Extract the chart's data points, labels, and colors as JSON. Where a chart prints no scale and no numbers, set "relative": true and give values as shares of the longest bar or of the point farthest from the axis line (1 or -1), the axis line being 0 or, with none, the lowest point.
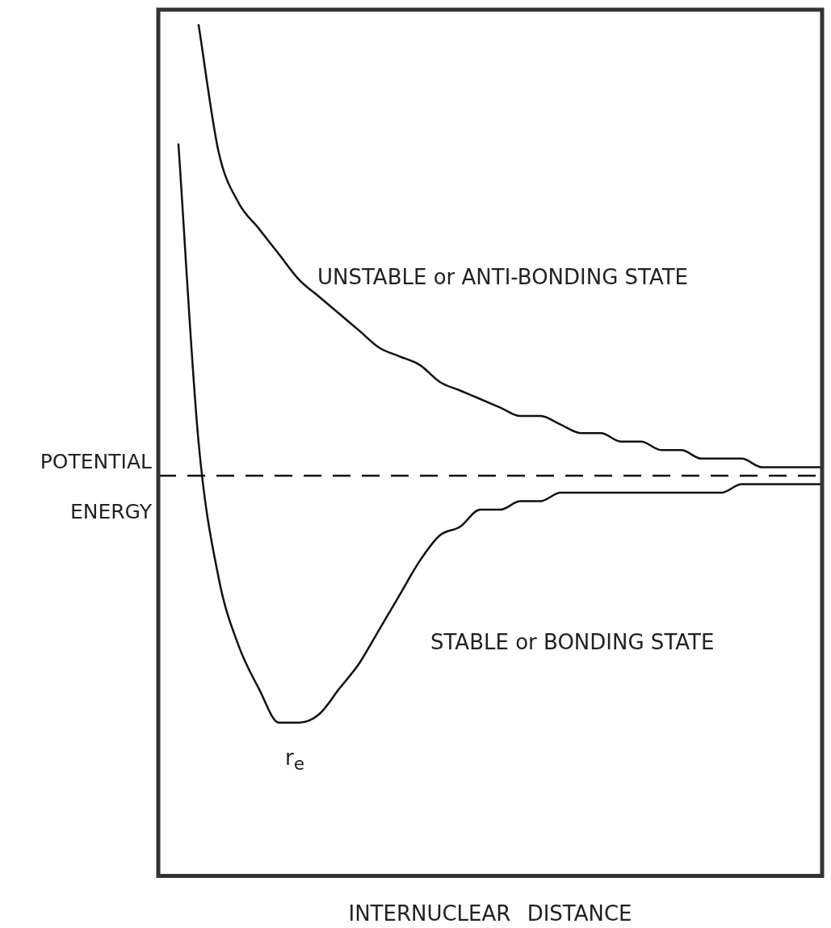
{
  "chart_data": {
    "type": "line",
    "relative": true,
    "xlabel": "INTERNUCLEAR DISTANCE",
    "ylabel": "POTENTIAL ENERGY",
    "legend": false,
    "grid": false,
    "marker": "none",
    "line_style": "solid",
    "categories": [
      null,
      null,
      null,
      null,
      null,
      null,
      null,
      null,
      null,
      null,
      null,
      null,
      null,
      null,
      null,
      null,
      null,
      null,
      null,
      null,
      null,
      null,
      null,
      null,
      null,
      null,
      null,
      null,
      null,
      null,
      null,
      null,
      null,
      null
    ],
    "series": [
      {
        "color": "#111111",
        "values": [
          null,
          null,
          1.0,
          0.85,
          0.79,
          0.76,
          0.73,
          0.7,
          0.68,
          0.66,
          0.64,
          0.62,
          0.61,
          0.6,
          0.58,
          0.57,
          0.56,
          0.55,
          0.54,
          0.54,
          0.53,
          0.52,
          0.52,
          0.51,
          0.51,
          0.5,
          0.5,
          0.49,
          0.49,
          0.49,
          0.48,
          0.48,
          0.48,
          0.48
        ]
      },
      {
        "color": "#111111",
        "values": [
          null,
          0.86,
          0.51,
          0.35,
          0.27,
          0.22,
          0.18,
          0.18,
          0.19,
          0.22,
          0.25,
          0.29,
          0.33,
          0.37,
          0.4,
          0.41,
          0.43,
          0.43,
          0.44,
          0.44,
          0.45,
          0.45,
          0.45,
          0.45,
          0.45,
          0.45,
          0.45,
          0.45,
          0.45,
          0.46,
          0.46,
          0.46,
          0.46,
          0.46
        ]
      }
    ],
    "ref_lines": [
      {
        "axis": "y",
        "value": 0.47,
        "color": "#111111",
        "line_style": "dashed"
      }
    ],
    "annotations": [
      "UNSTABLE or ANTI-BONDING STATE",
      "STABLE or BONDING STATE",
      "r$_{e}$"
    ]
  }
}
